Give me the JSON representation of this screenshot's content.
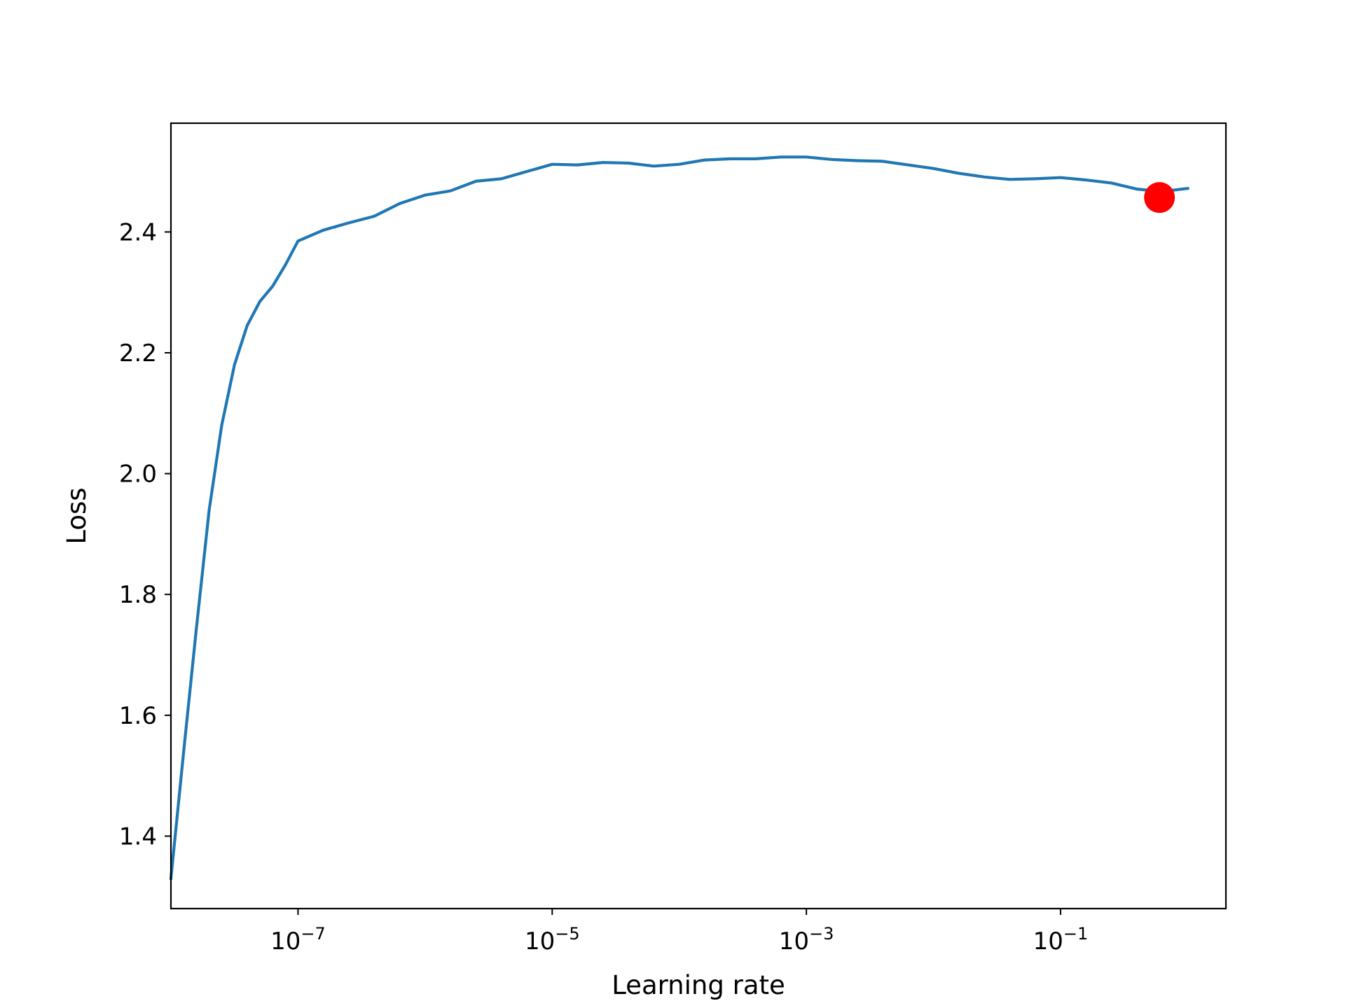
{
  "chart_data": {
    "type": "line",
    "title": "",
    "xlabel": "Learning rate",
    "ylabel": "Loss",
    "xscale": "log",
    "xlim": [
      1e-08,
      2.0
    ],
    "ylim": [
      1.28,
      2.58
    ],
    "grid": false,
    "legend": "none",
    "x_ticks": [
      {
        "value": 1e-07,
        "base": "10",
        "exp": "−7"
      },
      {
        "value": 1e-05,
        "base": "10",
        "exp": "−5"
      },
      {
        "value": 0.001,
        "base": "10",
        "exp": "−3"
      },
      {
        "value": 0.1,
        "base": "10",
        "exp": "−1"
      }
    ],
    "y_ticks": [
      {
        "value": 1.4,
        "label": "1.4"
      },
      {
        "value": 1.6,
        "label": "1.6"
      },
      {
        "value": 1.8,
        "label": "1.8"
      },
      {
        "value": 2.0,
        "label": "2.0"
      },
      {
        "value": 2.2,
        "label": "2.2"
      },
      {
        "value": 2.4,
        "label": "2.4"
      }
    ],
    "series": [
      {
        "color": "#1f77b4",
        "x": [
          1e-08,
          1.26e-08,
          1.58e-08,
          2e-08,
          2.51e-08,
          3.16e-08,
          3.98e-08,
          5.01e-08,
          6.31e-08,
          7.94e-08,
          1e-07,
          1.58e-07,
          2.51e-07,
          3.98e-07,
          6.31e-07,
          1e-06,
          1.58e-06,
          2.51e-06,
          3.98e-06,
          6.31e-06,
          1e-05,
          1.58e-05,
          2.51e-05,
          3.98e-05,
          6.31e-05,
          0.0001,
          0.000158,
          0.000251,
          0.000398,
          0.000631,
          0.001,
          0.00158,
          0.00251,
          0.00398,
          0.00631,
          0.01,
          0.0158,
          0.0251,
          0.0398,
          0.0631,
          0.1,
          0.158,
          0.251,
          0.398,
          0.631,
          1.0
        ],
        "y": [
          1.33,
          1.54,
          1.74,
          1.94,
          2.08,
          2.18,
          2.245,
          2.285,
          2.31,
          2.345,
          2.385,
          2.403,
          2.415,
          2.426,
          2.447,
          2.461,
          2.468,
          2.484,
          2.488,
          2.5,
          2.512,
          2.511,
          2.515,
          2.514,
          2.509,
          2.512,
          2.519,
          2.521,
          2.521,
          2.524,
          2.524,
          2.52,
          2.518,
          2.517,
          2.511,
          2.505,
          2.497,
          2.491,
          2.487,
          2.488,
          2.49,
          2.486,
          2.481,
          2.471,
          2.467,
          2.472
        ]
      }
    ],
    "marker": {
      "x": 0.6,
      "y": 2.457,
      "color": "#ff0000"
    }
  }
}
